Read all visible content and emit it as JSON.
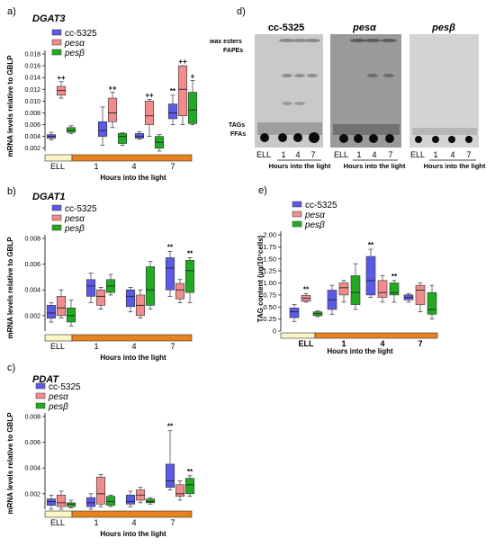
{
  "colors": {
    "cc5325": "#5a5ae6",
    "pesa": "#f08c8c",
    "pesb": "#22aa22",
    "ell": "#fbf5c4",
    "light": "#e8821e"
  },
  "panels": {
    "a": {
      "letter": "a)",
      "gene": "DGAT3"
    },
    "b": {
      "letter": "b)",
      "gene": "DGAT1"
    },
    "c": {
      "letter": "c)",
      "gene": "PDAT"
    },
    "d": {
      "letter": "d)"
    },
    "e": {
      "letter": "e)"
    }
  },
  "legend": [
    "cc-5325",
    "pesα",
    "pesβ"
  ],
  "ylabel_mrna": "mRNA levels relative to GBLP",
  "ylabel_tag": "TAG content (µg/10⁷cells)",
  "xlabel": "Hours into the light",
  "groups": [
    "ELL",
    "1",
    "4",
    "7"
  ],
  "tlc": {
    "strains": [
      "cc-5325",
      "pesα",
      "pesβ"
    ],
    "band_labels": [
      "wax esters",
      "FAPEs",
      "TAGs",
      "FFAs"
    ],
    "lanes": [
      "ELL",
      "1",
      "4",
      "7"
    ]
  },
  "chart_data": [
    {
      "panel": "a",
      "type": "box",
      "ylim": [
        0.0015,
        0.018
      ],
      "yticks": [
        0.002,
        0.004,
        0.006,
        0.008,
        0.01,
        0.012,
        0.014,
        0.016,
        0.018
      ],
      "tick_labels": [
        "0.002",
        "0.004",
        "0.006",
        "0.008",
        "0.010",
        "0.012",
        "0.014",
        "0.016",
        "0.018"
      ],
      "series": [
        {
          "name": "cc-5325",
          "boxes": [
            [
              0.0034,
              0.0037,
              0.004,
              0.0043,
              0.0047
            ],
            [
              0.0025,
              0.004,
              0.005,
              0.0065,
              0.009
            ],
            [
              0.0035,
              0.0037,
              0.004,
              0.0045,
              0.0048
            ],
            [
              0.006,
              0.007,
              0.008,
              0.0095,
              0.011
            ]
          ]
        },
        {
          "name": "pesα",
          "boxes": [
            [
              0.0105,
              0.011,
              0.0118,
              0.0125,
              0.0133
            ],
            [
              0.0055,
              0.0065,
              0.008,
              0.0105,
              0.0115
            ],
            [
              0.004,
              0.006,
              0.0075,
              0.01,
              0.0103
            ],
            [
              0.006,
              0.0075,
              0.012,
              0.016,
              0.016
            ]
          ]
        },
        {
          "name": "pesβ",
          "boxes": [
            [
              0.0045,
              0.0047,
              0.005,
              0.0055,
              0.0058
            ],
            [
              0.0025,
              0.0028,
              0.004,
              0.0045,
              0.0046
            ],
            [
              0.0015,
              0.002,
              0.003,
              0.004,
              0.0043
            ],
            [
              0.006,
              0.0062,
              0.0085,
              0.0115,
              0.0135
            ]
          ]
        }
      ],
      "annotations": [
        {
          "group": 0,
          "series": 1,
          "text": "++"
        },
        {
          "group": 1,
          "series": 1,
          "text": "++"
        },
        {
          "group": 2,
          "series": 1,
          "text": "++"
        },
        {
          "group": 3,
          "series": 0,
          "text": "**"
        },
        {
          "group": 3,
          "series": 1,
          "text": "++"
        },
        {
          "group": 3,
          "series": 2,
          "text": "+"
        }
      ]
    },
    {
      "panel": "b",
      "type": "box",
      "ylim": [
        0.0008,
        0.008
      ],
      "yticks": [
        0.002,
        0.004,
        0.006,
        0.008
      ],
      "tick_labels": [
        "0.002",
        "0.004",
        "0.006",
        "0.008"
      ],
      "series": [
        {
          "name": "cc-5325",
          "boxes": [
            [
              0.0015,
              0.0018,
              0.0022,
              0.0028,
              0.003
            ],
            [
              0.003,
              0.0035,
              0.0043,
              0.0048,
              0.0053
            ],
            [
              0.0023,
              0.0027,
              0.0035,
              0.004,
              0.0042
            ],
            [
              0.0035,
              0.004,
              0.0057,
              0.0065,
              0.007
            ]
          ]
        },
        {
          "name": "pesα",
          "boxes": [
            [
              0.0018,
              0.002,
              0.0026,
              0.0035,
              0.004
            ],
            [
              0.0025,
              0.0028,
              0.0035,
              0.004,
              0.0042
            ],
            [
              0.0018,
              0.002,
              0.0028,
              0.0036,
              0.004
            ],
            [
              0.003,
              0.0033,
              0.004,
              0.0045,
              0.0048
            ]
          ]
        },
        {
          "name": "pesβ",
          "boxes": [
            [
              0.0012,
              0.0015,
              0.002,
              0.0026,
              0.0032
            ],
            [
              0.0036,
              0.0038,
              0.0043,
              0.0048,
              0.0052
            ],
            [
              0.0025,
              0.0028,
              0.004,
              0.0058,
              0.0062
            ],
            [
              0.003,
              0.0038,
              0.0055,
              0.0063,
              0.0065
            ]
          ]
        }
      ],
      "annotations": [
        {
          "group": 3,
          "series": 0,
          "text": "**"
        },
        {
          "group": 3,
          "series": 2,
          "text": "**"
        }
      ]
    },
    {
      "panel": "c",
      "type": "box",
      "ylim": [
        0.0008,
        0.008
      ],
      "yticks": [
        0.002,
        0.004,
        0.006,
        0.008
      ],
      "tick_labels": [
        "0.002",
        "0.004",
        "0.006",
        "0.008"
      ],
      "series": [
        {
          "name": "cc-5325",
          "boxes": [
            [
              0.0008,
              0.0011,
              0.0014,
              0.0016,
              0.0019
            ],
            [
              0.0008,
              0.001,
              0.0013,
              0.0017,
              0.002
            ],
            [
              0.001,
              0.0012,
              0.0014,
              0.0019,
              0.0022
            ],
            [
              0.0023,
              0.0025,
              0.003,
              0.0043,
              0.0069
            ]
          ]
        },
        {
          "name": "pesα",
          "boxes": [
            [
              0.0008,
              0.001,
              0.0013,
              0.0019,
              0.0022
            ],
            [
              0.001,
              0.0012,
              0.002,
              0.0033,
              0.0035
            ],
            [
              0.0013,
              0.0015,
              0.0019,
              0.0023,
              0.0025
            ],
            [
              0.0015,
              0.0018,
              0.002,
              0.0027,
              0.003
            ]
          ]
        },
        {
          "name": "pesβ",
          "boxes": [
            [
              0.0009,
              0.001,
              0.0012,
              0.0013,
              0.0015
            ],
            [
              0.001,
              0.0011,
              0.0014,
              0.0018,
              0.0019
            ],
            [
              0.0012,
              0.0013,
              0.0014,
              0.0016,
              0.0017
            ],
            [
              0.0018,
              0.002,
              0.0027,
              0.0032,
              0.0034
            ]
          ]
        }
      ],
      "annotations": [
        {
          "group": 3,
          "series": 0,
          "text": "**"
        },
        {
          "group": 3,
          "series": 2,
          "text": "**"
        }
      ]
    },
    {
      "panel": "e",
      "type": "box",
      "ylim": [
        0,
        2
      ],
      "yticks": [
        0,
        0.25,
        0.5,
        0.75,
        1.0,
        1.25,
        1.5,
        1.75,
        2.0
      ],
      "tick_labels": [
        "0",
        "0.25",
        "0.50",
        "0.75",
        "1.00",
        "1.25",
        "1.50",
        "1.75",
        "2.00"
      ],
      "series": [
        {
          "name": "cc-5325",
          "boxes": [
            [
              0.2,
              0.28,
              0.4,
              0.48,
              0.55
            ],
            [
              0.35,
              0.45,
              0.65,
              0.85,
              0.95
            ],
            [
              0.7,
              0.75,
              1.05,
              1.55,
              1.7
            ],
            [
              0.6,
              0.65,
              0.7,
              0.75,
              0.78
            ]
          ]
        },
        {
          "name": "pesα",
          "boxes": [
            [
              0.6,
              0.62,
              0.68,
              0.74,
              0.78
            ],
            [
              0.6,
              0.75,
              0.9,
              1.0,
              1.05
            ],
            [
              0.6,
              0.7,
              0.8,
              1.05,
              1.15
            ],
            [
              0.4,
              0.55,
              0.85,
              0.95,
              1.0
            ]
          ]
        },
        {
          "name": "pesβ",
          "boxes": [
            [
              0.3,
              0.32,
              0.36,
              0.4,
              0.42
            ],
            [
              0.45,
              0.55,
              0.8,
              1.15,
              1.4
            ],
            [
              0.6,
              0.75,
              0.8,
              1.0,
              1.05
            ],
            [
              0.25,
              0.35,
              0.45,
              0.8,
              0.95
            ]
          ]
        }
      ],
      "annotations": [
        {
          "group": 0,
          "series": 1,
          "text": "**"
        },
        {
          "group": 2,
          "series": 0,
          "text": "**"
        },
        {
          "group": 2,
          "series": 2,
          "text": "**"
        }
      ]
    }
  ]
}
